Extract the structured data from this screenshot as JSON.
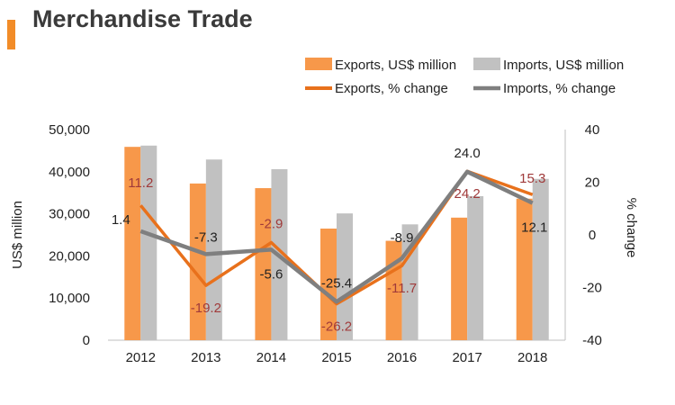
{
  "page": {
    "title": "Merchandise Trade"
  },
  "colors": {
    "accent": "#f28c28",
    "exports_bar": "#f7984a",
    "imports_bar": "#c1c1c1",
    "exports_line": "#e8711c",
    "imports_line": "#7f7f7f",
    "export_label": "#a03a3a",
    "import_label": "#222222"
  },
  "chart_data": {
    "type": "bar",
    "categories": [
      "2012",
      "2013",
      "2014",
      "2015",
      "2016",
      "2017",
      "2018"
    ],
    "title": "Merchandise Trade",
    "ylabel": "US$ million",
    "y2label": "% change",
    "ylim": [
      0,
      50000
    ],
    "y2lim": [
      -40,
      40
    ],
    "yticks": [
      "0",
      "10,000",
      "20,000",
      "30,000",
      "40,000",
      "50,000"
    ],
    "y2ticks": [
      "-40",
      "-20",
      "0",
      "20",
      "40"
    ],
    "legend_position": "top-right",
    "series": [
      {
        "name": "Exports, US$ million",
        "type": "bar",
        "axis": "left",
        "values": [
          45900,
          37200,
          36100,
          26500,
          23600,
          29100,
          33600
        ]
      },
      {
        "name": "Imports, US$ million",
        "type": "bar",
        "axis": "left",
        "values": [
          46200,
          42900,
          40600,
          30100,
          27500,
          34200,
          38300
        ]
      },
      {
        "name": "Exports, % change",
        "type": "line",
        "axis": "right",
        "values": [
          11.2,
          -19.2,
          -2.9,
          -26.2,
          -11.7,
          24.2,
          15.3
        ],
        "labels": [
          "11.2",
          "-19.2",
          "-2.9",
          "-26.2",
          "-11.7",
          "24.2",
          "15.3"
        ]
      },
      {
        "name": "Imports, % change",
        "type": "line",
        "axis": "right",
        "values": [
          1.4,
          -7.3,
          -5.6,
          -25.4,
          -8.9,
          24.0,
          12.1
        ],
        "labels": [
          "1.4",
          "-7.3",
          "-5.6",
          "-25.4",
          "-8.9",
          "24.0",
          "12.1"
        ]
      }
    ]
  }
}
